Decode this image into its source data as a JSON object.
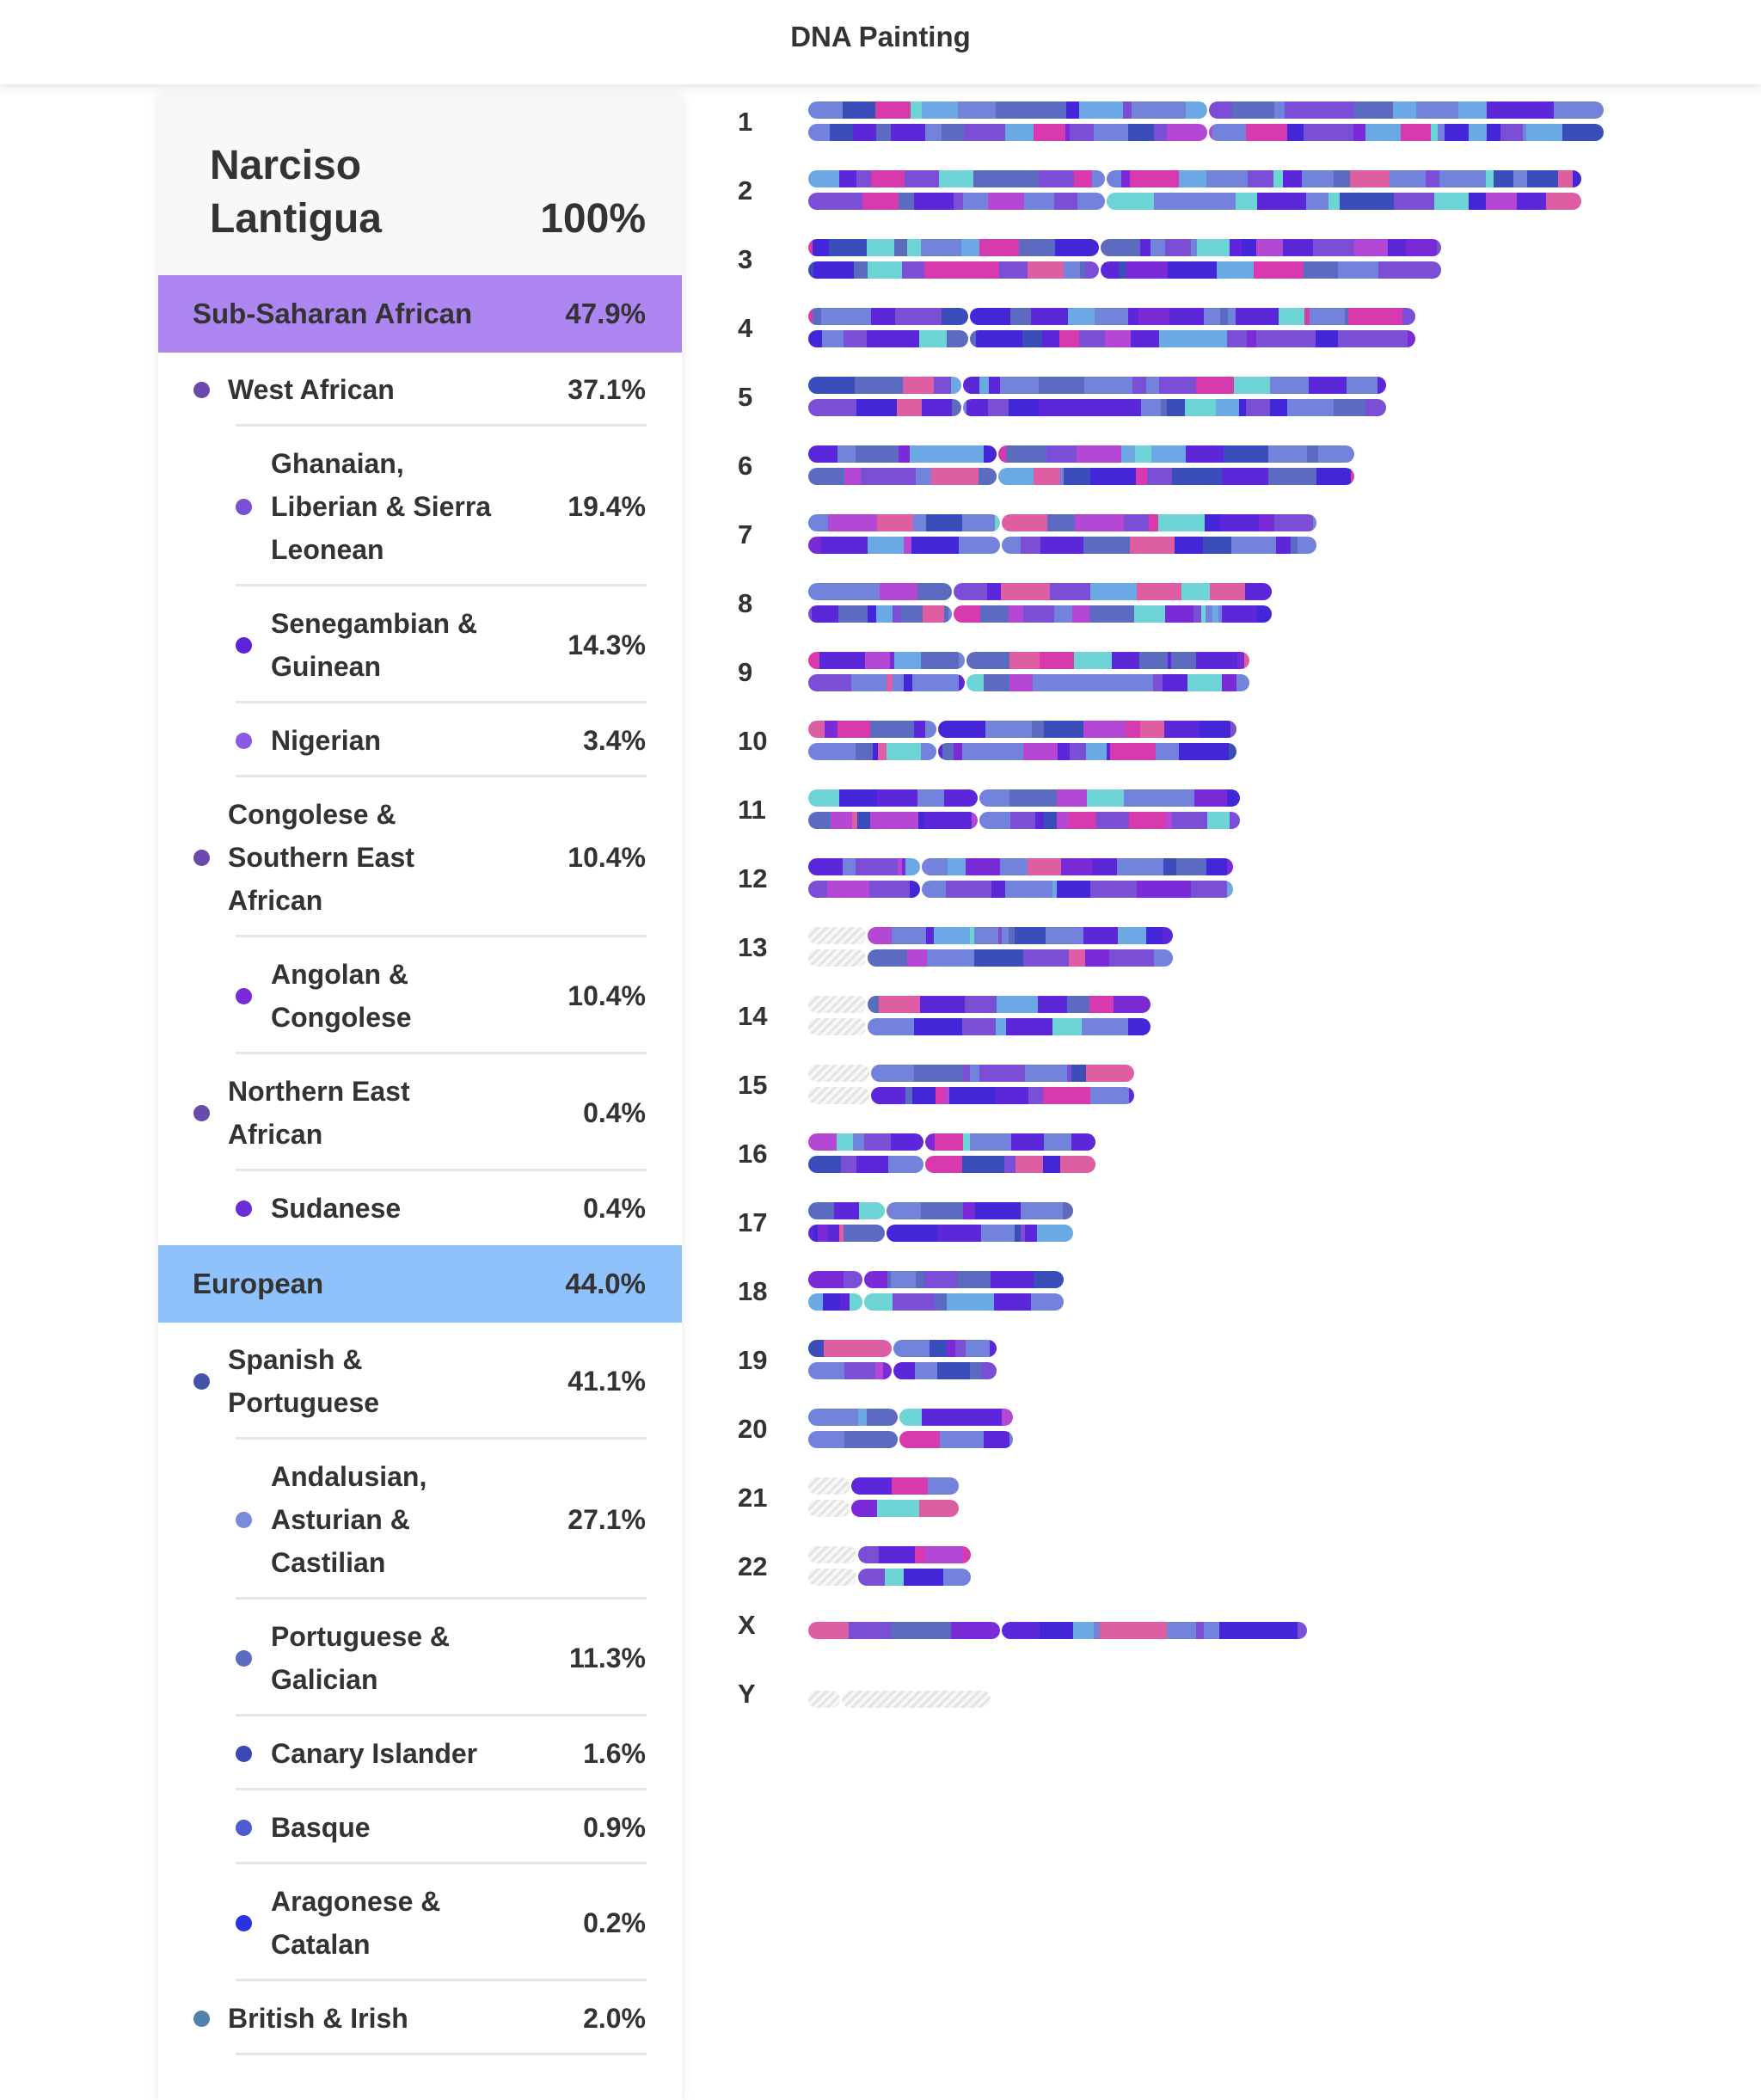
{
  "header": {
    "title": "DNA Painting"
  },
  "profile": {
    "name": "Narciso Lantigua",
    "total": "100%"
  },
  "categories": [
    {
      "label": "Sub-Saharan African",
      "percent": "47.9%",
      "color": "#ad86f2",
      "items": [
        {
          "label": "West African",
          "percent": "37.1%",
          "level": 1,
          "color": "#6a4aad"
        },
        {
          "label": "Ghanaian, Liberian & Sierra Leonean",
          "percent": "19.4%",
          "level": 2,
          "color": "#7a4fd6"
        },
        {
          "label": "Senegambian & Guinean",
          "percent": "14.3%",
          "level": 2,
          "color": "#5b24d9"
        },
        {
          "label": "Nigerian",
          "percent": "3.4%",
          "level": 2,
          "color": "#8a5ae6"
        },
        {
          "label": "Congolese & Southern East African",
          "percent": "10.4%",
          "level": 1,
          "color": "#6a4aad"
        },
        {
          "label": "Angolan & Congolese",
          "percent": "10.4%",
          "level": 2,
          "color": "#7b2ad8"
        },
        {
          "label": "Northern East African",
          "percent": "0.4%",
          "level": 1,
          "color": "#6a4aad"
        },
        {
          "label": "Sudanese",
          "percent": "0.4%",
          "level": 2,
          "color": "#6a2ed6"
        }
      ]
    },
    {
      "label": "European",
      "percent": "44.0%",
      "color": "#8fc1fa",
      "items": [
        {
          "label": "Spanish & Portuguese",
          "percent": "41.1%",
          "level": 1,
          "color": "#4552a8"
        },
        {
          "label": "Andalusian, Asturian & Castilian",
          "percent": "27.1%",
          "level": 2,
          "color": "#7b8bdc"
        },
        {
          "label": "Portuguese & Galician",
          "percent": "11.3%",
          "level": 2,
          "color": "#5d6cc0"
        },
        {
          "label": "Canary Islander",
          "percent": "1.6%",
          "level": 2,
          "color": "#3a47b5"
        },
        {
          "label": "Basque",
          "percent": "0.9%",
          "level": 2,
          "color": "#4a5cd0"
        },
        {
          "label": "Aragonese & Catalan",
          "percent": "0.2%",
          "level": 2,
          "color": "#2a32e0"
        },
        {
          "label": "British & Irish",
          "percent": "2.0%",
          "level": 1,
          "color": "#5181ad"
        }
      ]
    }
  ],
  "painting": {
    "palette": [
      "#5b27d8",
      "#5c6bbf",
      "#7382da",
      "#7a4fd6",
      "#7b2ad8",
      "#b447d4",
      "#d63aad",
      "#de5ea3",
      "#4326d8",
      "#6ba9e5",
      "#6fd4d6",
      "#3a4db8"
    ],
    "chromosomes": [
      {
        "label": "1",
        "length_mb": 249,
        "centromere_mb": 125
      },
      {
        "label": "2",
        "length_mb": 242,
        "centromere_mb": 93
      },
      {
        "label": "3",
        "length_mb": 198,
        "centromere_mb": 91
      },
      {
        "label": "4",
        "length_mb": 190,
        "centromere_mb": 50
      },
      {
        "label": "5",
        "length_mb": 181,
        "centromere_mb": 48
      },
      {
        "label": "6",
        "length_mb": 171,
        "centromere_mb": 59
      },
      {
        "label": "7",
        "length_mb": 159,
        "centromere_mb": 60
      },
      {
        "label": "8",
        "length_mb": 145,
        "centromere_mb": 45
      },
      {
        "label": "9",
        "length_mb": 138,
        "centromere_mb": 49
      },
      {
        "label": "10",
        "length_mb": 134,
        "centromere_mb": 40
      },
      {
        "label": "11",
        "length_mb": 135,
        "centromere_mb": 53
      },
      {
        "label": "12",
        "length_mb": 133,
        "centromere_mb": 35
      },
      {
        "label": "13",
        "length_mb": 114,
        "centromere_mb": 18,
        "unpainted_p_arm": true
      },
      {
        "label": "14",
        "length_mb": 107,
        "centromere_mb": 18,
        "unpainted_p_arm": true
      },
      {
        "label": "15",
        "length_mb": 102,
        "centromere_mb": 19,
        "unpainted_p_arm": true
      },
      {
        "label": "16",
        "length_mb": 90,
        "centromere_mb": 36
      },
      {
        "label": "17",
        "length_mb": 83,
        "centromere_mb": 24
      },
      {
        "label": "18",
        "length_mb": 80,
        "centromere_mb": 17
      },
      {
        "label": "19",
        "length_mb": 59,
        "centromere_mb": 26
      },
      {
        "label": "20",
        "length_mb": 64,
        "centromere_mb": 28
      },
      {
        "label": "21",
        "length_mb": 47,
        "centromere_mb": 13,
        "unpainted_p_arm": true
      },
      {
        "label": "22",
        "length_mb": 51,
        "centromere_mb": 15,
        "unpainted_p_arm": true
      },
      {
        "label": "X",
        "length_mb": 156,
        "centromere_mb": 60,
        "copies": 1
      },
      {
        "label": "Y",
        "length_mb": 57,
        "centromere_mb": 10,
        "copies": 1,
        "unpainted": true
      }
    ]
  }
}
